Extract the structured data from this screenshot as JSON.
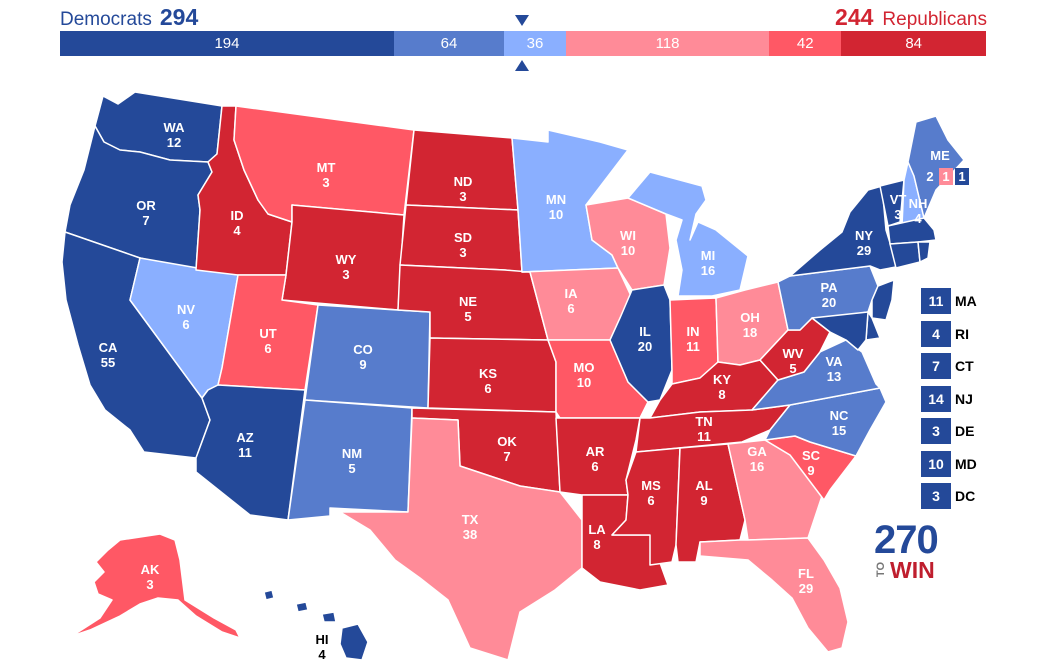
{
  "header": {
    "dem_name": "Democrats",
    "dem_total": "294",
    "rep_name": "Republicans",
    "rep_total": "244"
  },
  "colors": {
    "safe_dem": "#244999",
    "likely_dem": "#577ccc",
    "lean_dem": "#8aafff",
    "lean_rep": "#ff8b98",
    "likely_rep": "#ff5865",
    "safe_rep": "#d22532"
  },
  "bar": [
    {
      "value": "194",
      "category": "safe_dem"
    },
    {
      "value": "64",
      "category": "likely_dem"
    },
    {
      "value": "36",
      "category": "lean_dem"
    },
    {
      "value": "118",
      "category": "lean_rep"
    },
    {
      "value": "42",
      "category": "likely_rep"
    },
    {
      "value": "84",
      "category": "safe_rep"
    }
  ],
  "states": {
    "WA": {
      "label": "WA",
      "votes": "12",
      "category": "safe_dem"
    },
    "OR": {
      "label": "OR",
      "votes": "7",
      "category": "safe_dem"
    },
    "CA": {
      "label": "CA",
      "votes": "55",
      "category": "safe_dem"
    },
    "NV": {
      "label": "NV",
      "votes": "6",
      "category": "lean_dem"
    },
    "ID": {
      "label": "ID",
      "votes": "4",
      "category": "safe_rep"
    },
    "MT": {
      "label": "MT",
      "votes": "3",
      "category": "likely_rep"
    },
    "WY": {
      "label": "WY",
      "votes": "3",
      "category": "safe_rep"
    },
    "UT": {
      "label": "UT",
      "votes": "6",
      "category": "likely_rep"
    },
    "AZ": {
      "label": "AZ",
      "votes": "11",
      "category": "safe_dem"
    },
    "CO": {
      "label": "CO",
      "votes": "9",
      "category": "likely_dem"
    },
    "NM": {
      "label": "NM",
      "votes": "5",
      "category": "likely_dem"
    },
    "ND": {
      "label": "ND",
      "votes": "3",
      "category": "safe_rep"
    },
    "SD": {
      "label": "SD",
      "votes": "3",
      "category": "safe_rep"
    },
    "NE": {
      "label": "NE",
      "votes": "5",
      "category": "safe_rep"
    },
    "KS": {
      "label": "KS",
      "votes": "6",
      "category": "safe_rep"
    },
    "OK": {
      "label": "OK",
      "votes": "7",
      "category": "safe_rep"
    },
    "TX": {
      "label": "TX",
      "votes": "38",
      "category": "lean_rep"
    },
    "MN": {
      "label": "MN",
      "votes": "10",
      "category": "lean_dem"
    },
    "IA": {
      "label": "IA",
      "votes": "6",
      "category": "lean_rep"
    },
    "MO": {
      "label": "MO",
      "votes": "10",
      "category": "likely_rep"
    },
    "AR": {
      "label": "AR",
      "votes": "6",
      "category": "safe_rep"
    },
    "LA": {
      "label": "LA",
      "votes": "8",
      "category": "safe_rep"
    },
    "WI": {
      "label": "WI",
      "votes": "10",
      "category": "lean_rep"
    },
    "IL": {
      "label": "IL",
      "votes": "20",
      "category": "safe_dem"
    },
    "MI": {
      "label": "MI",
      "votes": "16",
      "category": "lean_dem"
    },
    "IN": {
      "label": "IN",
      "votes": "11",
      "category": "likely_rep"
    },
    "OH": {
      "label": "OH",
      "votes": "18",
      "category": "lean_rep"
    },
    "KY": {
      "label": "KY",
      "votes": "8",
      "category": "safe_rep"
    },
    "TN": {
      "label": "TN",
      "votes": "11",
      "category": "safe_rep"
    },
    "MS": {
      "label": "MS",
      "votes": "6",
      "category": "safe_rep"
    },
    "AL": {
      "label": "AL",
      "votes": "9",
      "category": "safe_rep"
    },
    "GA": {
      "label": "GA",
      "votes": "16",
      "category": "lean_rep"
    },
    "FL": {
      "label": "FL",
      "votes": "29",
      "category": "lean_rep"
    },
    "SC": {
      "label": "SC",
      "votes": "9",
      "category": "likely_rep"
    },
    "NC": {
      "label": "NC",
      "votes": "15",
      "category": "likely_dem"
    },
    "VA": {
      "label": "VA",
      "votes": "13",
      "category": "likely_dem"
    },
    "WV": {
      "label": "WV",
      "votes": "5",
      "category": "safe_rep"
    },
    "PA": {
      "label": "PA",
      "votes": "20",
      "category": "likely_dem"
    },
    "NY": {
      "label": "NY",
      "votes": "29",
      "category": "safe_dem"
    },
    "VT": {
      "label": "VT",
      "votes": "3",
      "category": "safe_dem"
    },
    "NH": {
      "label": "NH",
      "votes": "4",
      "category": "lean_dem"
    },
    "ME": {
      "label": "ME",
      "votes": "",
      "category": "likely_dem"
    },
    "AK": {
      "label": "AK",
      "votes": "3",
      "category": "likely_rep"
    },
    "HI": {
      "label": "HI",
      "votes": "4",
      "category": "safe_dem"
    }
  },
  "maine_districts": [
    {
      "votes": "2",
      "category": "likely_dem"
    },
    {
      "votes": "1",
      "category": "lean_rep"
    },
    {
      "votes": "1",
      "category": "safe_dem"
    }
  ],
  "small_states": [
    {
      "abbr": "MA",
      "votes": "11",
      "category": "safe_dem"
    },
    {
      "abbr": "RI",
      "votes": "4",
      "category": "safe_dem"
    },
    {
      "abbr": "CT",
      "votes": "7",
      "category": "safe_dem"
    },
    {
      "abbr": "NJ",
      "votes": "14",
      "category": "safe_dem"
    },
    {
      "abbr": "DE",
      "votes": "3",
      "category": "safe_dem"
    },
    {
      "abbr": "MD",
      "votes": "10",
      "category": "safe_dem"
    },
    {
      "abbr": "DC",
      "votes": "3",
      "category": "safe_dem"
    }
  ],
  "logo": {
    "number": "270",
    "to": "TO",
    "win": "WIN"
  }
}
